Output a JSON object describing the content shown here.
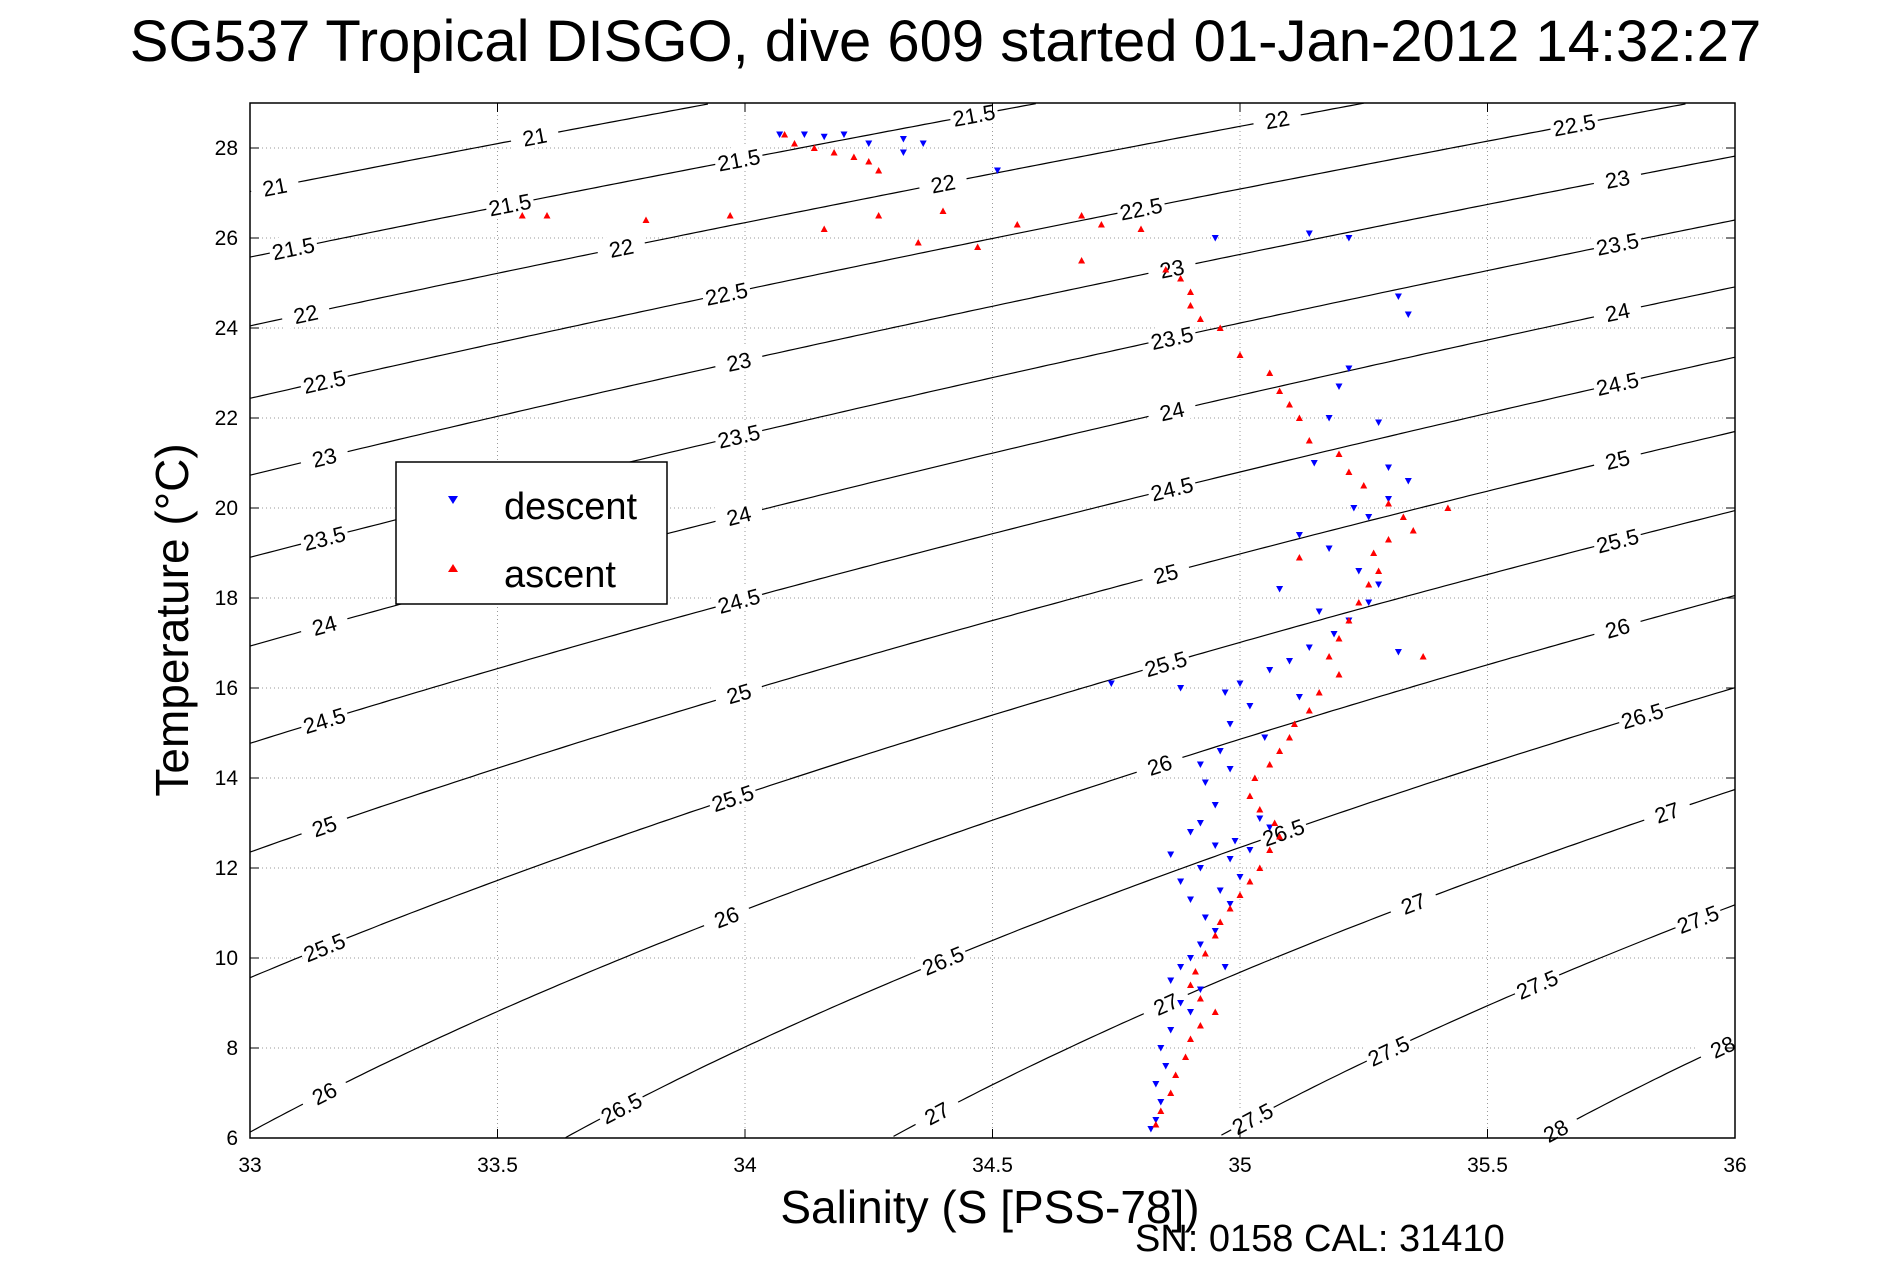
{
  "chart_data": {
    "type": "scatter",
    "title": "SG537 Tropical DISGO, dive 609 started 01-Jan-2012 14:32:27",
    "xlabel": "Salinity (S [PSS-78])",
    "ylabel": "Temperature (°C)",
    "footer": "SN: 0158  CAL: 31410",
    "xlim": [
      33,
      36
    ],
    "ylim": [
      6,
      29
    ],
    "xticks": [
      "33",
      "33.5",
      "34",
      "34.5",
      "35",
      "35.5",
      "36"
    ],
    "yticks": [
      "6",
      "8",
      "10",
      "12",
      "14",
      "16",
      "18",
      "20",
      "22",
      "24",
      "26",
      "28"
    ],
    "grid": true,
    "legend_position": "upper-left",
    "legend": [
      {
        "name": "descent",
        "color": "#0000ff",
        "marker": "triangle-down"
      },
      {
        "name": "ascent",
        "color": "#ff0000",
        "marker": "triangle-up"
      }
    ],
    "contour_levels": [
      "21",
      "21.5",
      "22",
      "22.5",
      "23",
      "23.5",
      "24",
      "24.5",
      "25",
      "25.5",
      "26",
      "26.5",
      "27",
      "27.5",
      "28"
    ],
    "series": [
      {
        "name": "descent",
        "color": "#0000ff",
        "points": [
          [
            34.07,
            28.3
          ],
          [
            34.12,
            28.3
          ],
          [
            34.16,
            28.25
          ],
          [
            34.2,
            28.3
          ],
          [
            34.25,
            28.1
          ],
          [
            34.32,
            28.2
          ],
          [
            34.36,
            28.1
          ],
          [
            34.32,
            27.9
          ],
          [
            34.51,
            27.5
          ],
          [
            35.14,
            26.1
          ],
          [
            35.22,
            26.0
          ],
          [
            34.95,
            26.0
          ],
          [
            35.32,
            24.7
          ],
          [
            35.34,
            24.3
          ],
          [
            35.22,
            23.1
          ],
          [
            35.2,
            22.7
          ],
          [
            35.28,
            21.9
          ],
          [
            35.3,
            20.9
          ],
          [
            35.34,
            20.6
          ],
          [
            35.3,
            20.2
          ],
          [
            35.23,
            20.0
          ],
          [
            35.12,
            19.4
          ],
          [
            35.18,
            19.1
          ],
          [
            35.24,
            18.6
          ],
          [
            35.28,
            18.3
          ],
          [
            35.26,
            17.9
          ],
          [
            35.22,
            17.5
          ],
          [
            35.19,
            17.2
          ],
          [
            35.14,
            16.9
          ],
          [
            35.1,
            16.6
          ],
          [
            35.06,
            16.4
          ],
          [
            35.0,
            16.1
          ],
          [
            34.97,
            15.9
          ],
          [
            35.02,
            15.6
          ],
          [
            34.98,
            15.2
          ],
          [
            35.05,
            14.9
          ],
          [
            34.96,
            14.6
          ],
          [
            34.98,
            14.2
          ],
          [
            34.88,
            16.0
          ],
          [
            34.74,
            16.1
          ],
          [
            34.93,
            13.9
          ],
          [
            34.95,
            13.4
          ],
          [
            34.92,
            13.0
          ],
          [
            34.9,
            12.8
          ],
          [
            34.95,
            12.5
          ],
          [
            34.98,
            12.2
          ],
          [
            34.92,
            12.0
          ],
          [
            35.0,
            11.8
          ],
          [
            34.96,
            11.5
          ],
          [
            34.98,
            11.2
          ],
          [
            34.93,
            10.9
          ],
          [
            34.95,
            10.6
          ],
          [
            34.92,
            10.3
          ],
          [
            34.9,
            10.0
          ],
          [
            34.88,
            9.8
          ],
          [
            34.86,
            9.5
          ],
          [
            34.92,
            9.3
          ],
          [
            34.88,
            9.0
          ],
          [
            34.9,
            8.8
          ],
          [
            34.86,
            8.4
          ],
          [
            34.84,
            8.0
          ],
          [
            34.85,
            7.6
          ],
          [
            34.83,
            7.2
          ],
          [
            34.84,
            6.8
          ],
          [
            34.83,
            6.4
          ],
          [
            34.82,
            6.2
          ],
          [
            34.86,
            12.3
          ],
          [
            34.99,
            12.6
          ],
          [
            35.04,
            13.1
          ],
          [
            35.06,
            12.9
          ],
          [
            34.88,
            11.7
          ],
          [
            35.08,
            18.2
          ],
          [
            35.16,
            17.7
          ],
          [
            34.92,
            14.3
          ],
          [
            35.26,
            19.8
          ],
          [
            35.18,
            22.0
          ],
          [
            35.15,
            21.0
          ],
          [
            35.32,
            16.8
          ],
          [
            35.12,
            15.8
          ],
          [
            35.02,
            12.4
          ],
          [
            34.9,
            11.3
          ],
          [
            34.97,
            9.8
          ]
        ]
      },
      {
        "name": "ascent",
        "color": "#ff0000",
        "points": [
          [
            34.08,
            28.3
          ],
          [
            34.1,
            28.1
          ],
          [
            34.14,
            28.0
          ],
          [
            34.18,
            27.9
          ],
          [
            34.22,
            27.8
          ],
          [
            34.25,
            27.7
          ],
          [
            34.27,
            27.5
          ],
          [
            34.4,
            26.6
          ],
          [
            34.35,
            25.9
          ],
          [
            34.16,
            26.2
          ],
          [
            34.27,
            26.5
          ],
          [
            33.55,
            26.5
          ],
          [
            33.6,
            26.5
          ],
          [
            33.8,
            26.4
          ],
          [
            33.97,
            26.5
          ],
          [
            34.47,
            25.8
          ],
          [
            34.55,
            26.3
          ],
          [
            34.68,
            26.5
          ],
          [
            34.68,
            25.5
          ],
          [
            34.72,
            26.3
          ],
          [
            34.8,
            26.2
          ],
          [
            34.85,
            25.3
          ],
          [
            34.88,
            25.1
          ],
          [
            34.9,
            24.8
          ],
          [
            34.9,
            24.5
          ],
          [
            34.92,
            24.2
          ],
          [
            34.96,
            24.0
          ],
          [
            35.0,
            23.4
          ],
          [
            35.06,
            23.0
          ],
          [
            35.08,
            22.6
          ],
          [
            35.1,
            22.3
          ],
          [
            35.12,
            22.0
          ],
          [
            35.14,
            21.5
          ],
          [
            35.2,
            21.2
          ],
          [
            35.22,
            20.8
          ],
          [
            35.25,
            20.5
          ],
          [
            35.3,
            20.1
          ],
          [
            35.33,
            19.8
          ],
          [
            35.35,
            19.5
          ],
          [
            35.3,
            19.3
          ],
          [
            35.27,
            19.0
          ],
          [
            35.28,
            18.6
          ],
          [
            35.26,
            18.3
          ],
          [
            35.24,
            17.9
          ],
          [
            35.22,
            17.5
          ],
          [
            35.2,
            17.1
          ],
          [
            35.18,
            16.7
          ],
          [
            35.2,
            16.3
          ],
          [
            35.16,
            15.9
          ],
          [
            35.14,
            15.5
          ],
          [
            35.11,
            15.2
          ],
          [
            35.1,
            14.9
          ],
          [
            35.08,
            14.6
          ],
          [
            35.06,
            14.3
          ],
          [
            35.03,
            14.0
          ],
          [
            35.02,
            13.6
          ],
          [
            35.04,
            13.3
          ],
          [
            35.07,
            13.0
          ],
          [
            35.08,
            12.7
          ],
          [
            35.06,
            12.4
          ],
          [
            35.04,
            12.0
          ],
          [
            35.02,
            11.7
          ],
          [
            35.0,
            11.4
          ],
          [
            34.98,
            11.1
          ],
          [
            34.96,
            10.8
          ],
          [
            34.95,
            10.5
          ],
          [
            34.93,
            10.1
          ],
          [
            34.91,
            9.7
          ],
          [
            34.9,
            9.4
          ],
          [
            34.92,
            9.1
          ],
          [
            34.95,
            8.8
          ],
          [
            34.92,
            8.5
          ],
          [
            34.9,
            8.2
          ],
          [
            34.89,
            7.8
          ],
          [
            34.87,
            7.4
          ],
          [
            34.86,
            7.0
          ],
          [
            34.84,
            6.6
          ],
          [
            34.83,
            6.3
          ],
          [
            35.42,
            20.0
          ],
          [
            35.37,
            16.7
          ],
          [
            35.12,
            18.9
          ]
        ]
      }
    ]
  }
}
